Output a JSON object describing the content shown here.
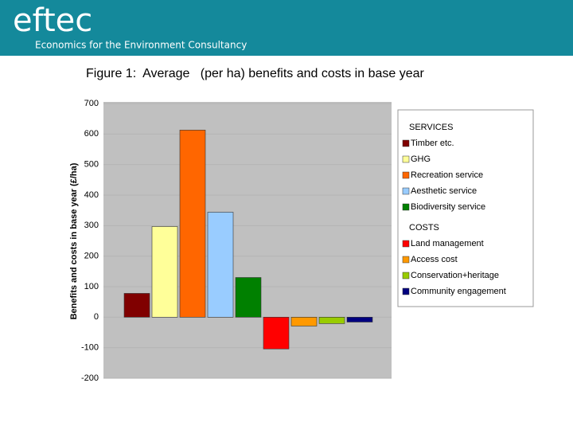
{
  "header": {
    "logo": "eftec",
    "tagline": "Economics for the Environment Consultancy"
  },
  "chart_data": {
    "type": "bar",
    "title": "Figure 1:  Average   (per ha) benefits and costs in base year",
    "ylabel": "Benefits and costs in base year (£/ha)",
    "ylim": [
      -200,
      700
    ],
    "yticks": [
      -200,
      -100,
      0,
      100,
      200,
      300,
      400,
      500,
      600,
      700
    ],
    "grid": true,
    "legend": "right",
    "groups": [
      {
        "title": "SERVICES",
        "series": [
          {
            "name": "Timber etc.",
            "color": "#800000",
            "values": [
              78
            ]
          },
          {
            "name": "GHG",
            "color": "#ffff99",
            "values": [
              297
            ]
          },
          {
            "name": "Recreation service",
            "color": "#ff6600",
            "values": [
              613
            ]
          },
          {
            "name": "Aesthetic service",
            "color": "#99ccff",
            "values": [
              344
            ]
          },
          {
            "name": "Biodiversity service",
            "color": "#008000",
            "values": [
              130
            ]
          }
        ]
      },
      {
        "title": "COSTS",
        "series": [
          {
            "name": "Land management",
            "color": "#ff0000",
            "values": [
              -104
            ]
          },
          {
            "name": "Access cost",
            "color": "#ff9900",
            "values": [
              -29
            ]
          },
          {
            "name": "Conservation+heritage",
            "color": "#99cc00",
            "values": [
              -21
            ]
          },
          {
            "name": "Community engagement",
            "color": "#000080",
            "values": [
              -16
            ]
          }
        ]
      }
    ]
  }
}
